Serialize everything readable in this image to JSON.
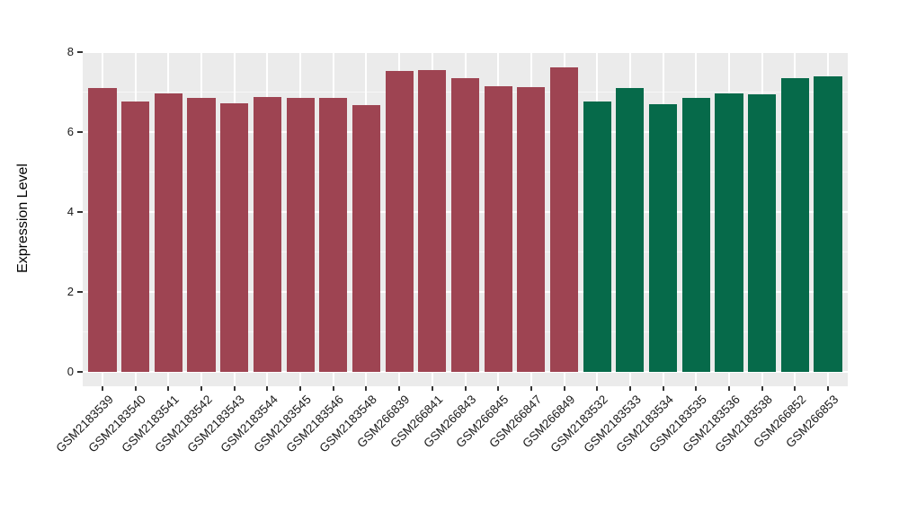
{
  "chart_data": {
    "type": "bar",
    "title": "",
    "xlabel": "",
    "ylabel": "Expression Level",
    "ylim": [
      -0.37,
      8.02
    ],
    "yticks": [
      0,
      2,
      4,
      6,
      8
    ],
    "yticks_minor": [
      1,
      3,
      5,
      7
    ],
    "legend_position": "none",
    "grid": "white major and minor gridlines on gray panel",
    "figure_bg": "#FFFFFF",
    "panel_bg": "#EBEBEB",
    "grid_color": "#FFFFFF",
    "tick_color": "#333333",
    "text_color": "#1A1A1A",
    "group_colors": {
      "group1": "#9E4452",
      "group2": "#066A4A"
    },
    "categories": [
      "GSM2183539",
      "GSM2183540",
      "GSM2183541",
      "GSM2183542",
      "GSM2183543",
      "GSM2183544",
      "GSM2183545",
      "GSM2183546",
      "GSM2183548",
      "GSM266839",
      "GSM266841",
      "GSM266843",
      "GSM266845",
      "GSM266847",
      "GSM266849",
      "GSM2183532",
      "GSM2183533",
      "GSM2183534",
      "GSM2183535",
      "GSM2183536",
      "GSM2183538",
      "GSM266852",
      "GSM266853"
    ],
    "values": [
      7.1,
      6.76,
      6.97,
      6.84,
      6.72,
      6.88,
      6.86,
      6.86,
      6.66,
      7.52,
      7.55,
      7.35,
      7.15,
      7.11,
      7.62,
      6.75,
      7.1,
      6.7,
      6.84,
      6.97,
      6.95,
      7.34,
      7.38
    ],
    "bar_groups": [
      "group1",
      "group1",
      "group1",
      "group1",
      "group1",
      "group1",
      "group1",
      "group1",
      "group1",
      "group1",
      "group1",
      "group1",
      "group1",
      "group1",
      "group1",
      "group2",
      "group2",
      "group2",
      "group2",
      "group2",
      "group2",
      "group2",
      "group2"
    ]
  }
}
